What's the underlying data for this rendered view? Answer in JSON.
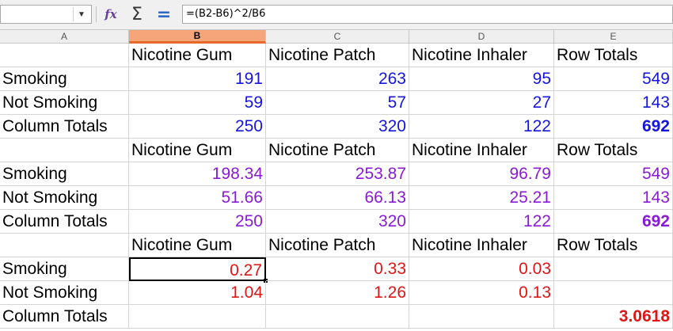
{
  "formula_bar": {
    "name_box_value": "",
    "formula": "=(B2-B6)^2/B6"
  },
  "columns": [
    "A",
    "B",
    "C",
    "D",
    "E"
  ],
  "selected_column": "B",
  "rows": [
    [
      "",
      "Nicotine Gum",
      "Nicotine Patch",
      "Nicotine Inhaler",
      "Row Totals"
    ],
    [
      "Smoking",
      "191",
      "263",
      "95",
      "549"
    ],
    [
      "Not Smoking",
      "59",
      "57",
      "27",
      "143"
    ],
    [
      "Column Totals",
      "250",
      "320",
      "122",
      "692"
    ],
    [
      "",
      "Nicotine Gum",
      "Nicotine Patch",
      "Nicotine Inhaler",
      "Row Totals"
    ],
    [
      "Smoking",
      "198.34",
      "253.87",
      "96.79",
      "549"
    ],
    [
      "Not Smoking",
      "51.66",
      "66.13",
      "25.21",
      "143"
    ],
    [
      "Column Totals",
      "250",
      "320",
      "122",
      "692"
    ],
    [
      "",
      "Nicotine Gum",
      "Nicotine Patch",
      "Nicotine Inhaler",
      "Row Totals"
    ],
    [
      "Smoking",
      "0.27",
      "0.33",
      "0.03",
      ""
    ],
    [
      "Not Smoking",
      "1.04",
      "1.26",
      "0.13",
      ""
    ],
    [
      "Column Totals",
      "",
      "",
      "",
      "3.0618"
    ]
  ],
  "colors": {
    "observed": "#1515e0",
    "expected": "#8a1ad8",
    "chi": "#e01515",
    "selected_header": "#f6a57a"
  },
  "active_cell": "B10"
}
